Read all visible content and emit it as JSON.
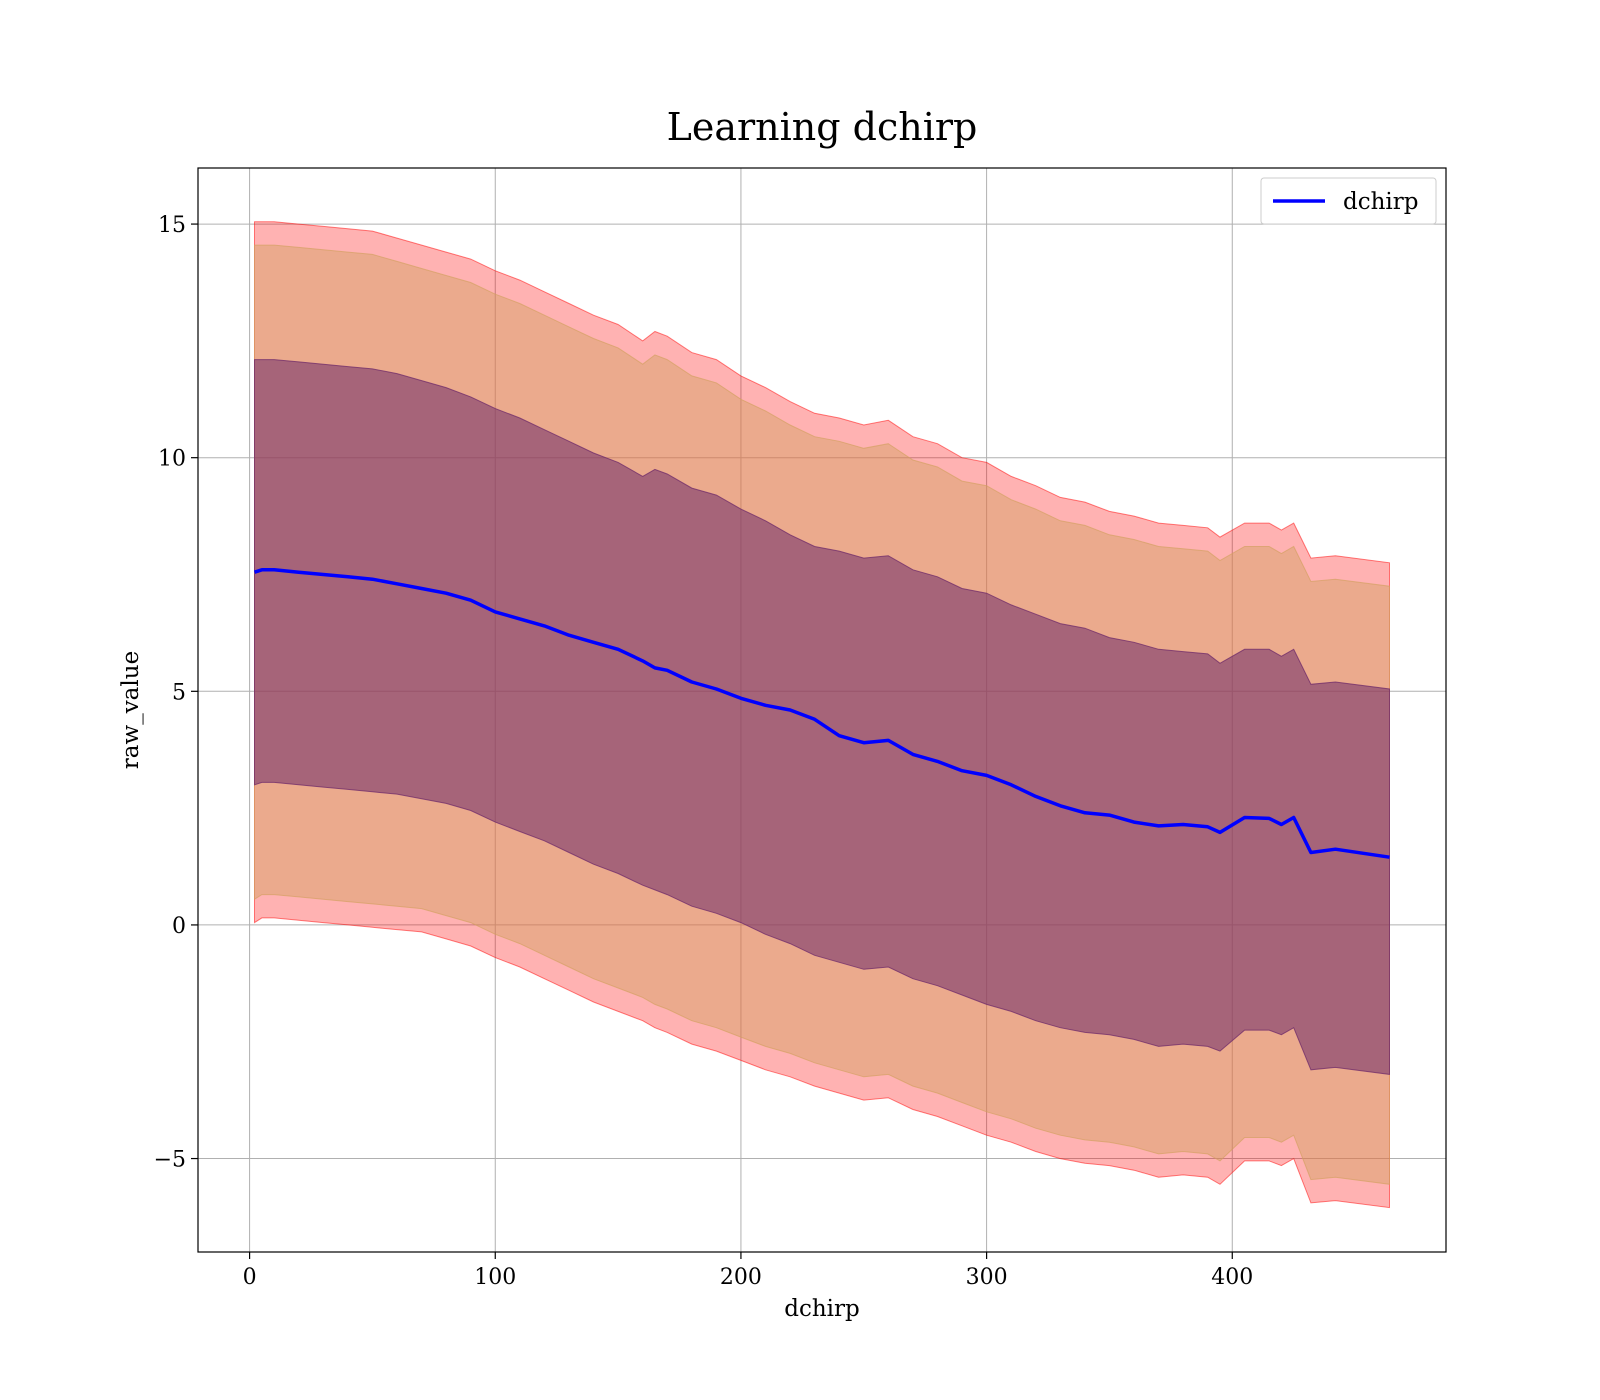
{
  "chart_data": {
    "type": "line",
    "title": "Learning dchirp",
    "xlabel": "dchirp",
    "ylabel": "raw_value",
    "xlim": [
      -21,
      487
    ],
    "ylim": [
      -7.0,
      16.2
    ],
    "xticks": [
      0,
      100,
      200,
      300,
      400
    ],
    "xtick_labels": [
      "0",
      "100",
      "200",
      "300",
      "400"
    ],
    "yticks": [
      -5,
      0,
      5,
      10,
      15
    ],
    "ytick_labels": [
      "−5",
      "0",
      "5",
      "10",
      "15"
    ],
    "grid": true,
    "legend": {
      "position": "top-right",
      "entries": [
        "dchirp"
      ]
    },
    "series": [
      {
        "name": "dchirp",
        "color": "#0000ff",
        "x": [
          2,
          5,
          10,
          20,
          30,
          40,
          50,
          60,
          70,
          80,
          90,
          100,
          110,
          120,
          130,
          140,
          150,
          160,
          165,
          170,
          180,
          190,
          200,
          210,
          220,
          230,
          240,
          250,
          260,
          270,
          280,
          290,
          300,
          310,
          320,
          330,
          340,
          350,
          360,
          370,
          380,
          390,
          395,
          405,
          415,
          420,
          425,
          432,
          442,
          464
        ],
        "values": [
          7.55,
          7.6,
          7.6,
          7.55,
          7.5,
          7.45,
          7.4,
          7.3,
          7.2,
          7.1,
          6.95,
          6.7,
          6.55,
          6.4,
          6.2,
          6.05,
          5.9,
          5.65,
          5.5,
          5.45,
          5.2,
          5.05,
          4.85,
          4.7,
          4.6,
          4.4,
          4.05,
          3.9,
          3.95,
          3.65,
          3.5,
          3.3,
          3.2,
          3.0,
          2.75,
          2.55,
          2.4,
          2.35,
          2.2,
          2.12,
          2.15,
          2.1,
          1.98,
          2.3,
          2.28,
          2.15,
          2.3,
          1.55,
          1.62,
          1.45
        ]
      }
    ],
    "bands": [
      {
        "color": "#ff0000",
        "opacity": 0.3,
        "upper": [
          15.05,
          15.05,
          15.05,
          15.0,
          14.95,
          14.9,
          14.85,
          14.7,
          14.55,
          14.4,
          14.25,
          14.0,
          13.8,
          13.55,
          13.3,
          13.05,
          12.85,
          12.5,
          12.7,
          12.6,
          12.25,
          12.1,
          11.75,
          11.5,
          11.2,
          10.95,
          10.85,
          10.7,
          10.8,
          10.45,
          10.3,
          10.0,
          9.9,
          9.6,
          9.4,
          9.15,
          9.05,
          8.85,
          8.75,
          8.6,
          8.55,
          8.5,
          8.3,
          8.6,
          8.6,
          8.45,
          8.6,
          7.85,
          7.9,
          7.75
        ],
        "lower": [
          0.05,
          0.15,
          0.15,
          0.1,
          0.05,
          0.0,
          -0.05,
          -0.1,
          -0.15,
          -0.3,
          -0.45,
          -0.7,
          -0.9,
          -1.15,
          -1.4,
          -1.65,
          -1.85,
          -2.05,
          -2.2,
          -2.3,
          -2.55,
          -2.7,
          -2.9,
          -3.1,
          -3.25,
          -3.45,
          -3.6,
          -3.75,
          -3.7,
          -3.95,
          -4.1,
          -4.3,
          -4.5,
          -4.65,
          -4.85,
          -5.0,
          -5.1,
          -5.15,
          -5.25,
          -5.4,
          -5.35,
          -5.4,
          -5.55,
          -5.05,
          -5.05,
          -5.15,
          -5.0,
          -5.95,
          -5.9,
          -6.05
        ]
      },
      {
        "color": "#d2a060",
        "opacity": 0.45,
        "upper": [
          14.55,
          14.55,
          14.55,
          14.5,
          14.45,
          14.4,
          14.35,
          14.2,
          14.05,
          13.9,
          13.75,
          13.5,
          13.3,
          13.05,
          12.8,
          12.55,
          12.35,
          12.0,
          12.2,
          12.1,
          11.75,
          11.6,
          11.25,
          11.0,
          10.7,
          10.45,
          10.35,
          10.2,
          10.3,
          9.95,
          9.8,
          9.5,
          9.4,
          9.1,
          8.9,
          8.65,
          8.55,
          8.35,
          8.25,
          8.1,
          8.05,
          8.0,
          7.8,
          8.1,
          8.1,
          7.95,
          8.1,
          7.35,
          7.4,
          7.25
        ],
        "lower": [
          0.55,
          0.65,
          0.65,
          0.6,
          0.55,
          0.5,
          0.45,
          0.4,
          0.35,
          0.2,
          0.05,
          -0.2,
          -0.4,
          -0.65,
          -0.9,
          -1.15,
          -1.35,
          -1.55,
          -1.7,
          -1.8,
          -2.05,
          -2.2,
          -2.4,
          -2.6,
          -2.75,
          -2.95,
          -3.1,
          -3.25,
          -3.2,
          -3.45,
          -3.6,
          -3.8,
          -4.0,
          -4.15,
          -4.35,
          -4.5,
          -4.6,
          -4.65,
          -4.75,
          -4.9,
          -4.85,
          -4.9,
          -5.05,
          -4.55,
          -4.55,
          -4.65,
          -4.5,
          -5.45,
          -5.4,
          -5.55
        ]
      },
      {
        "color": "#6e2a6a",
        "opacity": 0.55,
        "upper": [
          12.1,
          12.1,
          12.1,
          12.05,
          12.0,
          11.95,
          11.9,
          11.8,
          11.65,
          11.5,
          11.3,
          11.05,
          10.85,
          10.6,
          10.35,
          10.1,
          9.9,
          9.6,
          9.75,
          9.65,
          9.35,
          9.2,
          8.9,
          8.65,
          8.35,
          8.1,
          8.0,
          7.85,
          7.9,
          7.6,
          7.45,
          7.2,
          7.1,
          6.85,
          6.65,
          6.45,
          6.35,
          6.15,
          6.05,
          5.9,
          5.85,
          5.8,
          5.6,
          5.9,
          5.9,
          5.75,
          5.9,
          5.15,
          5.2,
          5.05
        ],
        "lower": [
          3.0,
          3.05,
          3.05,
          3.0,
          2.95,
          2.9,
          2.85,
          2.8,
          2.7,
          2.6,
          2.45,
          2.2,
          2.0,
          1.8,
          1.55,
          1.3,
          1.1,
          0.85,
          0.75,
          0.65,
          0.4,
          0.25,
          0.05,
          -0.2,
          -0.4,
          -0.65,
          -0.8,
          -0.95,
          -0.9,
          -1.15,
          -1.3,
          -1.5,
          -1.7,
          -1.85,
          -2.05,
          -2.2,
          -2.3,
          -2.35,
          -2.45,
          -2.6,
          -2.55,
          -2.6,
          -2.7,
          -2.25,
          -2.25,
          -2.35,
          -2.2,
          -3.1,
          -3.05,
          -3.2
        ]
      }
    ]
  }
}
